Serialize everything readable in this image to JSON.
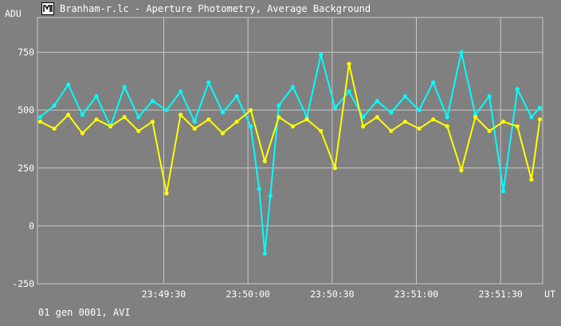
{
  "window": {
    "title": "Branham-r.lc - Aperture Photometry, Average Background",
    "icon": "lightcurve-app-icon"
  },
  "status": "01 gen 0001, AVI",
  "colors": {
    "background": "#808080",
    "grid": "#c8c8c8",
    "series_cyan": "#00ffff",
    "series_yellow": "#ffff00"
  },
  "chart_data": {
    "type": "line",
    "ylabel": "ADU",
    "xlabel": "UT",
    "ylim": [
      -250,
      900
    ],
    "yticks": [
      -250,
      0,
      250,
      500,
      750
    ],
    "xlim": [
      "23:48:45",
      "23:51:45"
    ],
    "xticks": [
      "23:49:30",
      "23:50:00",
      "23:50:30",
      "23:51:00",
      "23:51:30"
    ],
    "grid": true,
    "series": [
      {
        "color": "#00ffff",
        "x": [
          "23:48:46",
          "23:48:51",
          "23:48:56",
          "23:49:01",
          "23:49:06",
          "23:49:11",
          "23:49:16",
          "23:49:21",
          "23:49:26",
          "23:49:31",
          "23:49:36",
          "23:49:41",
          "23:49:46",
          "23:49:51",
          "23:49:56",
          "23:50:01",
          "23:50:04",
          "23:50:06",
          "23:50:08",
          "23:50:11",
          "23:50:16",
          "23:50:21",
          "23:50:26",
          "23:50:31",
          "23:50:36",
          "23:50:41",
          "23:50:46",
          "23:50:51",
          "23:50:56",
          "23:51:01",
          "23:51:06",
          "23:51:11",
          "23:51:16",
          "23:51:21",
          "23:51:26",
          "23:51:31",
          "23:51:36",
          "23:51:41",
          "23:51:44"
        ],
        "values": [
          470,
          520,
          610,
          480,
          560,
          430,
          600,
          470,
          540,
          500,
          580,
          450,
          620,
          490,
          560,
          430,
          160,
          -120,
          130,
          520,
          600,
          470,
          740,
          510,
          580,
          470,
          540,
          490,
          560,
          500,
          620,
          470,
          750,
          480,
          560,
          150,
          590,
          470,
          510
        ]
      },
      {
        "color": "#ffff00",
        "x": [
          "23:48:46",
          "23:48:51",
          "23:48:56",
          "23:49:01",
          "23:49:06",
          "23:49:11",
          "23:49:16",
          "23:49:21",
          "23:49:26",
          "23:49:31",
          "23:49:36",
          "23:49:41",
          "23:49:46",
          "23:49:51",
          "23:49:56",
          "23:50:01",
          "23:50:06",
          "23:50:11",
          "23:50:16",
          "23:50:21",
          "23:50:26",
          "23:50:31",
          "23:50:36",
          "23:50:41",
          "23:50:46",
          "23:50:51",
          "23:50:56",
          "23:51:01",
          "23:51:06",
          "23:51:11",
          "23:51:16",
          "23:51:21",
          "23:51:26",
          "23:51:31",
          "23:51:36",
          "23:51:41",
          "23:51:44"
        ],
        "values": [
          450,
          420,
          480,
          400,
          460,
          430,
          470,
          410,
          450,
          140,
          480,
          420,
          460,
          400,
          450,
          500,
          280,
          470,
          430,
          460,
          410,
          250,
          700,
          430,
          470,
          410,
          450,
          420,
          460,
          430,
          240,
          470,
          410,
          450,
          430,
          200,
          460
        ]
      }
    ]
  }
}
